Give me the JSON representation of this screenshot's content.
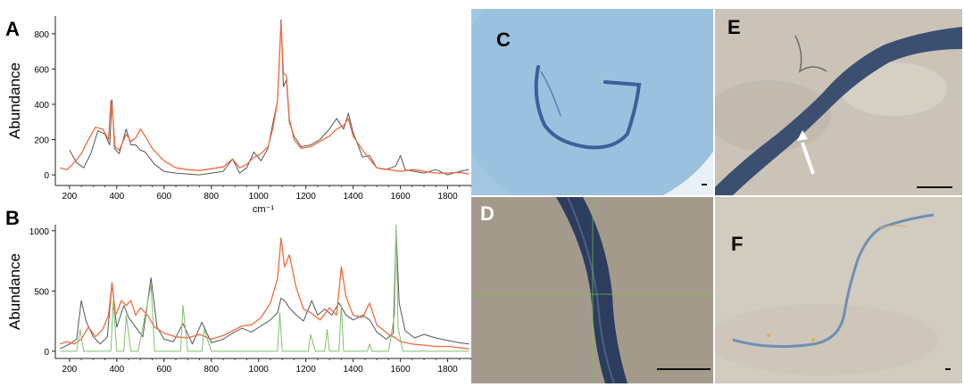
{
  "chart_data": [
    {
      "panel_label": "A",
      "type": "line",
      "ylabel": "Abundance",
      "xlabel": "cm⁻¹",
      "xlim": [
        140,
        1900
      ],
      "ylim": [
        -60,
        900
      ],
      "xticks": [
        200,
        400,
        600,
        800,
        1000,
        1200,
        1400,
        1600,
        1800
      ],
      "yticks": [
        0,
        200,
        400,
        600,
        800
      ],
      "grid": false,
      "series": [
        {
          "color": "#555555",
          "x": [
            200,
            230,
            260,
            290,
            320,
            350,
            370,
            380,
            390,
            410,
            440,
            460,
            480,
            500,
            520,
            560,
            600,
            650,
            700,
            750,
            800,
            850,
            890,
            920,
            950,
            980,
            1010,
            1040,
            1060,
            1080,
            1095,
            1105,
            1118,
            1130,
            1150,
            1180,
            1220,
            1260,
            1300,
            1330,
            1360,
            1380,
            1400,
            1440,
            1470,
            1500,
            1540,
            1580,
            1600,
            1620,
            1660,
            1700,
            1750,
            1800,
            1850,
            1890
          ],
          "y": [
            140,
            70,
            40,
            120,
            250,
            230,
            170,
            425,
            150,
            120,
            260,
            170,
            170,
            140,
            130,
            60,
            20,
            10,
            5,
            0,
            10,
            20,
            90,
            10,
            40,
            130,
            80,
            150,
            290,
            420,
            880,
            500,
            540,
            300,
            220,
            160,
            170,
            200,
            260,
            320,
            260,
            350,
            240,
            100,
            110,
            40,
            30,
            50,
            110,
            30,
            20,
            10,
            30,
            0,
            20,
            30
          ]
        },
        {
          "color": "#f06b3c",
          "x": [
            160,
            190,
            220,
            250,
            280,
            310,
            340,
            365,
            375,
            382,
            392,
            410,
            440,
            460,
            480,
            500,
            520,
            550,
            600,
            650,
            700,
            750,
            800,
            850,
            890,
            920,
            950,
            980,
            1010,
            1040,
            1060,
            1080,
            1095,
            1105,
            1118,
            1130,
            1150,
            1180,
            1220,
            1260,
            1300,
            1330,
            1360,
            1380,
            1400,
            1440,
            1470,
            1500,
            1550,
            1600,
            1650,
            1700,
            1750,
            1800,
            1850,
            1890
          ],
          "y": [
            40,
            30,
            70,
            120,
            200,
            270,
            260,
            200,
            420,
            360,
            160,
            140,
            230,
            190,
            210,
            260,
            220,
            150,
            80,
            40,
            30,
            25,
            35,
            45,
            90,
            40,
            60,
            100,
            120,
            160,
            260,
            420,
            860,
            580,
            560,
            320,
            200,
            150,
            160,
            190,
            220,
            260,
            280,
            320,
            220,
            140,
            90,
            40,
            30,
            20,
            30,
            20,
            10,
            10,
            15,
            5
          ]
        }
      ]
    },
    {
      "panel_label": "B",
      "type": "line",
      "ylabel": "Abundance",
      "xlabel": "",
      "xlim": [
        140,
        1900
      ],
      "ylim": [
        -60,
        1050
      ],
      "xticks": [
        200,
        400,
        600,
        800,
        1000,
        1200,
        1400,
        1600,
        1800
      ],
      "yticks": [
        0,
        500,
        1000
      ],
      "grid": false,
      "series": [
        {
          "color": "#555555",
          "x": [
            160,
            200,
            230,
            250,
            270,
            300,
            330,
            360,
            380,
            400,
            430,
            450,
            480,
            510,
            545,
            570,
            600,
            640,
            680,
            720,
            760,
            800,
            850,
            890,
            930,
            970,
            1010,
            1050,
            1080,
            1095,
            1110,
            1130,
            1160,
            1190,
            1225,
            1250,
            1280,
            1310,
            1340,
            1370,
            1400,
            1440,
            1470,
            1500,
            1540,
            1570,
            1582,
            1595,
            1620,
            1660,
            1700,
            1750,
            1800,
            1850,
            1890
          ],
          "y": [
            20,
            60,
            100,
            420,
            250,
            120,
            60,
            120,
            560,
            200,
            380,
            280,
            200,
            120,
            610,
            200,
            100,
            80,
            230,
            60,
            240,
            70,
            100,
            150,
            190,
            160,
            210,
            260,
            320,
            440,
            420,
            360,
            300,
            250,
            420,
            300,
            350,
            300,
            400,
            300,
            260,
            300,
            260,
            160,
            100,
            150,
            1000,
            400,
            170,
            110,
            140,
            110,
            90,
            70,
            60
          ]
        },
        {
          "color": "#f06b3c",
          "x": [
            160,
            190,
            220,
            250,
            280,
            310,
            340,
            365,
            380,
            395,
            420,
            440,
            460,
            480,
            500,
            530,
            560,
            600,
            650,
            700,
            750,
            800,
            850,
            890,
            930,
            970,
            1010,
            1050,
            1080,
            1095,
            1110,
            1130,
            1160,
            1190,
            1220,
            1260,
            1300,
            1330,
            1350,
            1370,
            1400,
            1440,
            1470,
            1500,
            1550,
            1580,
            1600,
            1650,
            1700,
            1750,
            1800,
            1850,
            1890
          ],
          "y": [
            60,
            80,
            60,
            100,
            200,
            120,
            180,
            300,
            570,
            300,
            420,
            380,
            420,
            300,
            360,
            300,
            200,
            150,
            120,
            110,
            140,
            100,
            130,
            170,
            210,
            220,
            280,
            400,
            600,
            940,
            700,
            800,
            520,
            350,
            320,
            260,
            360,
            300,
            700,
            450,
            300,
            280,
            400,
            220,
            140,
            110,
            80,
            60,
            50,
            40,
            40,
            30,
            20
          ]
        },
        {
          "color": "#7fc06a",
          "x": [
            160,
            230,
            245,
            260,
            300,
            350,
            375,
            385,
            400,
            430,
            440,
            460,
            490,
            510,
            545,
            560,
            600,
            640,
            670,
            680,
            700,
            760,
            770,
            800,
            900,
            1000,
            1080,
            1090,
            1100,
            1150,
            1210,
            1220,
            1240,
            1280,
            1290,
            1300,
            1340,
            1350,
            1360,
            1400,
            1460,
            1470,
            1480,
            1550,
            1575,
            1582,
            1590,
            1610,
            1700,
            1800,
            1890
          ],
          "y": [
            0,
            0,
            180,
            0,
            0,
            0,
            0,
            420,
            0,
            0,
            300,
            0,
            0,
            200,
            550,
            0,
            0,
            0,
            0,
            380,
            0,
            0,
            180,
            0,
            0,
            0,
            0,
            320,
            0,
            0,
            0,
            140,
            0,
            0,
            180,
            0,
            0,
            380,
            0,
            0,
            0,
            60,
            0,
            0,
            300,
            1050,
            200,
            0,
            0,
            0,
            0
          ]
        }
      ]
    }
  ],
  "micrographs": [
    {
      "label": "C",
      "background": "#9fc5df",
      "fiber_color": "#3d5f9a"
    },
    {
      "label": "D",
      "background": "#a39a8c",
      "fiber_color": "#2c3d5e"
    },
    {
      "label": "E",
      "background": "#cbc3b7",
      "fiber_color": "#3b5070"
    },
    {
      "label": "F",
      "background": "#d2cbbf",
      "fiber_color": "#6e8fb5"
    }
  ]
}
